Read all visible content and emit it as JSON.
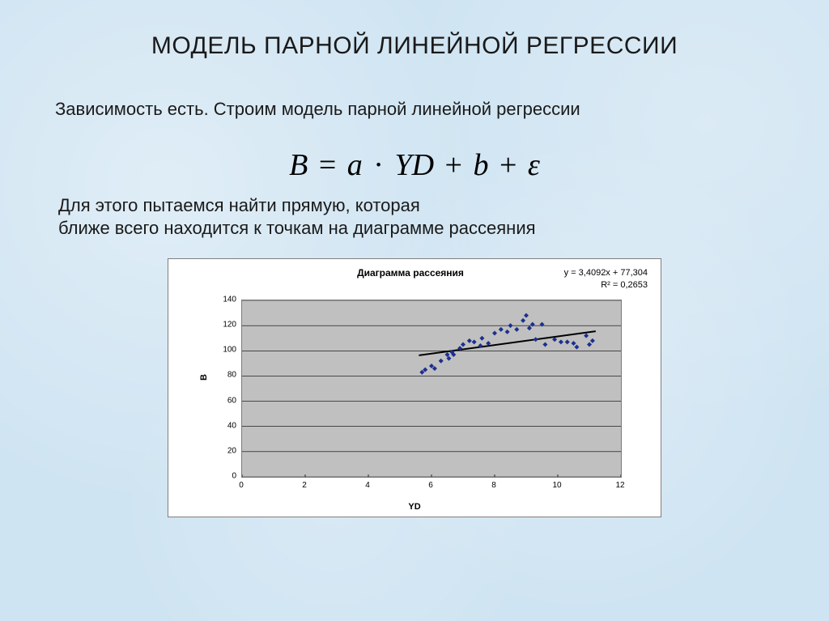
{
  "page": {
    "title": "МОДЕЛЬ ПАРНОЙ ЛИНЕЙНОЙ  РЕГРЕССИИ",
    "subtitle": "Зависимость есть. Строим модель парной линейной регрессии",
    "body_text_line1": "Для этого пытаемся найти прямую, которая",
    "body_text_line2": "ближе всего находится к точкам на диаграмме рассеяния",
    "background_color": "#cfe4f2",
    "title_fontsize": 30,
    "body_fontsize": 22
  },
  "formula": {
    "lhs": "B",
    "rhs_parts": [
      "a",
      "·",
      "YD",
      "+",
      "b",
      "+",
      "ε"
    ],
    "fontsize": 38,
    "font_family": "Times New Roman"
  },
  "chart": {
    "type": "scatter",
    "title": "Диаграмма рассеяния",
    "title_fontsize": 12,
    "title_fontweight": "bold",
    "eq_line1": "y = 3,4092x + 77,304",
    "eq_line2": "R² = 0,2653",
    "eq_fontsize": 11,
    "xlabel": "YD",
    "ylabel": "B",
    "label_fontsize": 11,
    "label_fontweight": "bold",
    "tick_fontsize": 10,
    "xlim": [
      0,
      12
    ],
    "ylim": [
      0,
      140
    ],
    "xticks": [
      0,
      2,
      4,
      6,
      8,
      10,
      12
    ],
    "yticks": [
      0,
      20,
      40,
      60,
      80,
      100,
      120,
      140
    ],
    "plot_background": "#c0c0c0",
    "card_background": "#ffffff",
    "grid_color": "#000000",
    "grid_linewidth": 0.6,
    "grid": "horizontal",
    "marker_color": "#1c2f8f",
    "marker_style": "diamond",
    "marker_size": 6,
    "trendline_color": "#000000",
    "trendline_width": 2,
    "trendline": {
      "slope": 3.4092,
      "intercept": 77.304,
      "x_from": 5.6,
      "x_to": 11.2
    },
    "points": [
      {
        "x": 5.7,
        "y": 83
      },
      {
        "x": 5.8,
        "y": 85
      },
      {
        "x": 6.0,
        "y": 88
      },
      {
        "x": 6.1,
        "y": 86
      },
      {
        "x": 6.3,
        "y": 92
      },
      {
        "x": 6.5,
        "y": 97
      },
      {
        "x": 6.55,
        "y": 94
      },
      {
        "x": 6.65,
        "y": 99
      },
      {
        "x": 6.7,
        "y": 97
      },
      {
        "x": 6.9,
        "y": 102
      },
      {
        "x": 7.0,
        "y": 105
      },
      {
        "x": 7.2,
        "y": 108
      },
      {
        "x": 7.35,
        "y": 107
      },
      {
        "x": 7.55,
        "y": 104
      },
      {
        "x": 7.6,
        "y": 110
      },
      {
        "x": 7.8,
        "y": 106
      },
      {
        "x": 8.0,
        "y": 114
      },
      {
        "x": 8.2,
        "y": 117
      },
      {
        "x": 8.4,
        "y": 115
      },
      {
        "x": 8.5,
        "y": 120
      },
      {
        "x": 8.7,
        "y": 117
      },
      {
        "x": 8.9,
        "y": 124
      },
      {
        "x": 9.0,
        "y": 128
      },
      {
        "x": 9.1,
        "y": 118
      },
      {
        "x": 9.2,
        "y": 121
      },
      {
        "x": 9.3,
        "y": 109
      },
      {
        "x": 9.5,
        "y": 121
      },
      {
        "x": 9.6,
        "y": 105
      },
      {
        "x": 9.9,
        "y": 109
      },
      {
        "x": 10.1,
        "y": 107
      },
      {
        "x": 10.3,
        "y": 107
      },
      {
        "x": 10.5,
        "y": 106
      },
      {
        "x": 10.6,
        "y": 103
      },
      {
        "x": 10.9,
        "y": 112
      },
      {
        "x": 11.0,
        "y": 105
      },
      {
        "x": 11.1,
        "y": 108
      }
    ]
  }
}
